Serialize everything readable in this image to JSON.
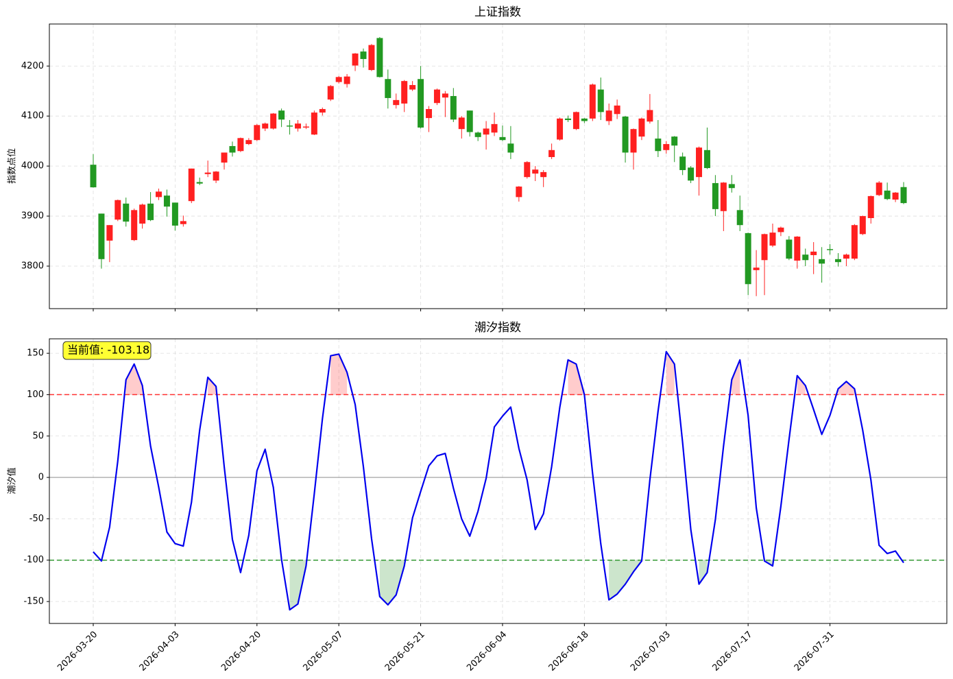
{
  "chart_data": [
    {
      "type": "candlestick",
      "title": "上证指数",
      "ylabel": "指数点位",
      "open": [
        4002.7,
        3905,
        3851,
        3893,
        3925,
        3852,
        3885,
        3925,
        3938,
        3941,
        3927,
        3884,
        3930,
        3968,
        3984,
        3971,
        4007,
        4040,
        4030,
        4044,
        4052,
        4075,
        4075,
        4111,
        4081,
        4075,
        4077,
        4063,
        4107,
        4133,
        4168,
        4164,
        4201,
        4229,
        4192,
        4256,
        4174,
        4122,
        4125,
        4153,
        4174,
        4096,
        4126,
        4137,
        4140,
        4074,
        4111,
        4067,
        4063,
        4067,
        4058,
        4045,
        3938,
        3978,
        3985,
        3978,
        4018,
        4053,
        4095,
        4074,
        4095,
        4095,
        4153,
        4090,
        4104,
        4099,
        4027,
        4059,
        4089,
        4055,
        4032,
        4059,
        4019,
        3997,
        3978,
        4032,
        3966,
        3910,
        3964,
        3912,
        3866,
        3792,
        3812,
        3841,
        3868,
        3853,
        3811,
        3823,
        3822,
        3814,
        3834,
        3814,
        3815,
        3815,
        3864,
        3896,
        3942,
        3951,
        3933,
        3958
      ],
      "high": [
        4024,
        3905,
        3882,
        3933,
        3937,
        3915,
        3925,
        3948,
        3955,
        3953,
        3927,
        3901,
        3995,
        3977,
        4011,
        3990,
        4027,
        4049,
        4057,
        4056,
        4084,
        4087,
        4106,
        4115,
        4092,
        4092,
        4085,
        4111,
        4117,
        4162,
        4180,
        4184,
        4226,
        4235,
        4244,
        4258,
        4193,
        4145,
        4172,
        4170,
        4200,
        4120,
        4155,
        4150,
        4156,
        4100,
        4111,
        4069,
        4090,
        4107,
        4081,
        4080,
        3960,
        4010,
        4000,
        3992,
        4045,
        4097,
        4101,
        4109,
        4096,
        4165,
        4177,
        4125,
        4133,
        4100,
        4075,
        4097,
        4144,
        4092,
        4050,
        4060,
        4027,
        4000,
        4039,
        4077,
        3982,
        3968,
        3982,
        3941,
        3867,
        3832,
        3865,
        3885,
        3879,
        3860,
        3860,
        3835,
        3848,
        3838,
        3844,
        3826,
        3825,
        3884,
        3901,
        3941,
        3970,
        3967,
        3948,
        3968
      ],
      "low": [
        3957,
        3795,
        3808,
        3890,
        3879,
        3850,
        3875,
        3890,
        3932,
        3899,
        3871,
        3879,
        3926,
        3962,
        3978,
        3966,
        3993,
        4019,
        4028,
        4042,
        4050,
        4070,
        4073,
        4078,
        4063,
        4069,
        4074,
        4062,
        4101,
        4130,
        4165,
        4157,
        4190,
        4197,
        4190,
        4177,
        4115,
        4115,
        4108,
        4150,
        4075,
        4068,
        4122,
        4098,
        4088,
        4055,
        4059,
        4050,
        4033,
        4060,
        4050,
        4014,
        3929,
        3975,
        3970,
        3958,
        4014,
        4051,
        4088,
        4072,
        4086,
        4090,
        4092,
        4082,
        4094,
        4007,
        3993,
        4052,
        4085,
        4018,
        4025,
        4008,
        3982,
        3966,
        3941,
        3994,
        3900,
        3870,
        3947,
        3870,
        3742,
        3740,
        3742,
        3838,
        3860,
        3812,
        3795,
        3800,
        3784,
        3767,
        3823,
        3799,
        3800,
        3812,
        3862,
        3885,
        3940,
        3932,
        3928,
        3924
      ],
      "close": [
        3957.5,
        3814,
        3882,
        3932,
        3889,
        3912,
        3923,
        3892,
        3949,
        3919,
        3881,
        3890,
        3995,
        3965,
        3987,
        3989,
        4027,
        4027,
        4056,
        4052,
        4082,
        4085,
        4105,
        4093,
        4079,
        4085,
        4079,
        4107,
        4114,
        4160,
        4178,
        4179,
        4225,
        4214,
        4242,
        4178,
        4136,
        4132,
        4170,
        4162,
        4077,
        4114,
        4153,
        4145,
        4093,
        4097,
        4068,
        4058,
        4075,
        4084,
        4052,
        4027,
        3959,
        4008,
        3993,
        3988,
        4032,
        4095,
        4092,
        4108,
        4090,
        4163,
        4108,
        4111,
        4121,
        4027,
        4074,
        4095,
        4112,
        4030,
        4044,
        4041,
        3992,
        3971,
        4037,
        3996,
        3914,
        3967,
        3956,
        3882,
        3764,
        3797,
        3864,
        3867,
        3877,
        3815,
        3859,
        3812,
        3829,
        3805,
        3832,
        3808,
        3823,
        3882,
        3900,
        3940,
        3967,
        3934,
        3947,
        3926
      ],
      "up_color": "#ff2020",
      "down_color": "#229922",
      "ylim": [
        3715,
        4284
      ],
      "yticks": [
        3800,
        3900,
        4000,
        4100,
        4200
      ],
      "grid": true
    },
    {
      "type": "line",
      "title": "潮汐指数",
      "ylabel": "潮汐值",
      "categories": [
        "2026-03-20",
        null,
        null,
        null,
        null,
        null,
        null,
        null,
        null,
        null,
        "2026-04-03",
        null,
        null,
        null,
        null,
        null,
        null,
        null,
        null,
        null,
        "2026-04-20",
        null,
        null,
        null,
        null,
        null,
        null,
        null,
        null,
        null,
        "2026-05-07",
        null,
        null,
        null,
        null,
        null,
        null,
        null,
        null,
        null,
        "2026-05-21",
        null,
        null,
        null,
        null,
        null,
        null,
        null,
        null,
        null,
        "2026-06-04",
        null,
        null,
        null,
        null,
        null,
        null,
        null,
        null,
        null,
        "2026-06-18",
        null,
        null,
        null,
        null,
        null,
        null,
        null,
        null,
        null,
        "2026-07-03",
        null,
        null,
        null,
        null,
        null,
        null,
        null,
        null,
        null,
        "2026-07-17",
        null,
        null,
        null,
        null,
        null,
        null,
        null,
        null,
        null,
        "2026-07-31",
        null,
        null,
        null,
        null,
        null,
        null,
        null,
        null,
        null
      ],
      "values": [
        -90,
        -101,
        -60,
        20,
        118,
        137,
        111,
        38,
        -12,
        -66,
        -80,
        -83,
        -30,
        57,
        121,
        110,
        13,
        -75,
        -115,
        -70,
        8,
        34,
        -12,
        -99,
        -160,
        -153,
        -107,
        -20,
        71,
        147,
        149,
        127,
        88,
        13,
        -74,
        -144,
        -154,
        -142,
        -107,
        -49,
        -17,
        14,
        26,
        29,
        -13,
        -50,
        -71,
        -41,
        -1,
        61,
        74,
        85,
        35,
        -3,
        -63,
        -44,
        13,
        85,
        142,
        137,
        100,
        5,
        -80,
        -148,
        -141,
        -129,
        -114,
        -101,
        -3,
        80,
        152,
        137,
        42,
        -63,
        -129,
        -115,
        -51,
        38,
        118,
        142,
        75,
        -37,
        -101,
        -107,
        -35,
        46,
        123,
        111,
        82,
        52,
        75,
        107,
        116,
        107,
        57,
        -3,
        -82,
        -92,
        -89,
        -103.18
      ],
      "color": "#0000ee",
      "upper_threshold": 100,
      "upper_color": "#ff3333",
      "lower_threshold": -100,
      "lower_color": "#339933",
      "baseline": 0,
      "baseline_color": "#999999",
      "annotation": "当前值: -103.18",
      "ylim": [
        -176.5,
        167.5
      ],
      "yticks": [
        -150,
        -100,
        -50,
        0,
        50,
        100,
        150
      ],
      "grid": true
    }
  ]
}
